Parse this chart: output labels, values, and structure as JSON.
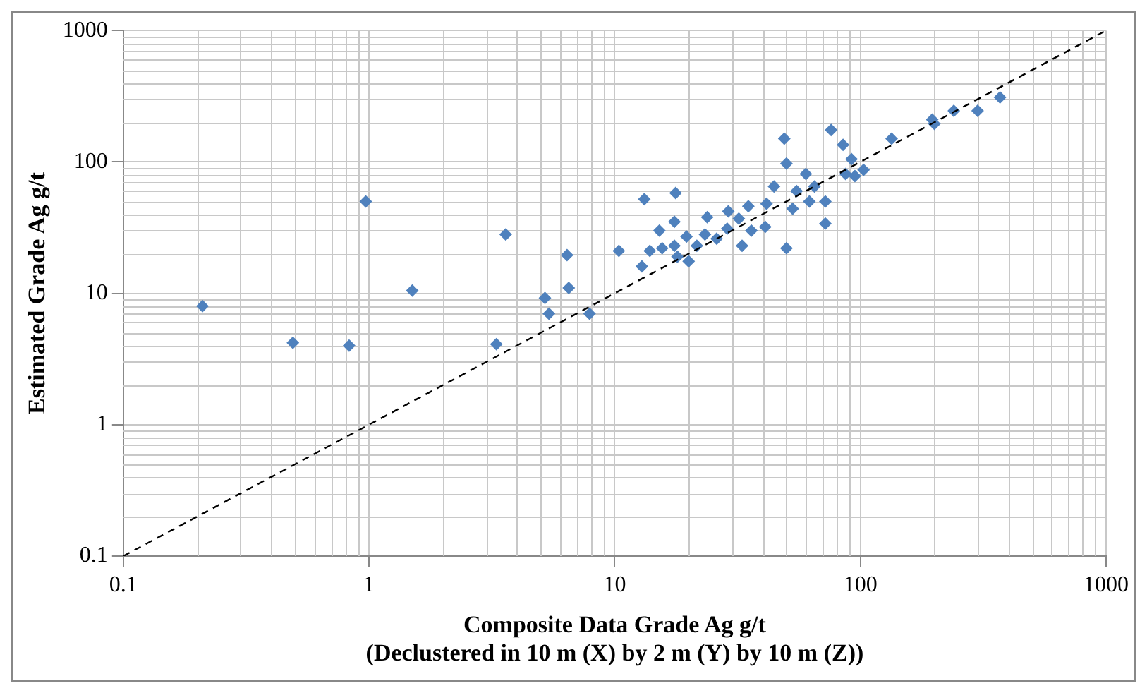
{
  "chart_data": {
    "type": "scatter",
    "xlabel": "Composite Data Grade Ag g/t\n(Declustered in 10 m (X) by 2 m (Y) by 10 m (Z))",
    "ylabel": "Estimated Grade Ag g/t",
    "log": "xy",
    "grid": true,
    "legend": false,
    "marker": "diamond",
    "xlim": [
      0.1,
      1000
    ],
    "xticks": [
      0.1,
      1,
      10,
      100,
      1000
    ],
    "ylim": [
      0.1,
      1000
    ],
    "yticks": [
      0.1,
      1,
      10,
      100,
      1000
    ],
    "series": [
      {
        "color": "#4f81bd",
        "x": [
          0.21,
          0.49,
          0.83,
          0.97,
          1.5,
          3.6,
          3.3,
          5.2,
          5.4,
          6.4,
          6.5,
          7.9,
          10.4,
          12.9,
          13.2,
          17.7,
          13.9,
          15.2,
          15.6,
          17.5,
          17.5,
          18,
          20,
          19.6,
          21.6,
          23.8,
          23.3,
          26,
          28.7,
          29,
          32,
          33,
          35,
          36,
          41,
          41.5,
          44.5,
          50,
          49,
          50,
          55,
          53,
          60,
          62,
          65,
          72,
          72,
          76,
          85,
          92,
          87,
          103,
          95,
          134,
          196,
          200,
          240,
          300,
          370
        ],
        "values": [
          8,
          4.2,
          4,
          50,
          10.5,
          28,
          4.1,
          9.2,
          7,
          19.5,
          11,
          7,
          21,
          16,
          52,
          58,
          21,
          30,
          22,
          35,
          23,
          19,
          17.5,
          27,
          23,
          38,
          28,
          26,
          31,
          42,
          37,
          23,
          46,
          30,
          32,
          48,
          65,
          97,
          150,
          22,
          60,
          44,
          81,
          50,
          65,
          50,
          34,
          175,
          135,
          105,
          81,
          87,
          78,
          150,
          210,
          195,
          245,
          245,
          310
        ]
      },
      {
        "type": "line",
        "color": "#000000",
        "line_style": "dashed",
        "marker": "none",
        "x": [
          0.1,
          1000
        ],
        "values": [
          0.1,
          1000
        ]
      }
    ]
  }
}
